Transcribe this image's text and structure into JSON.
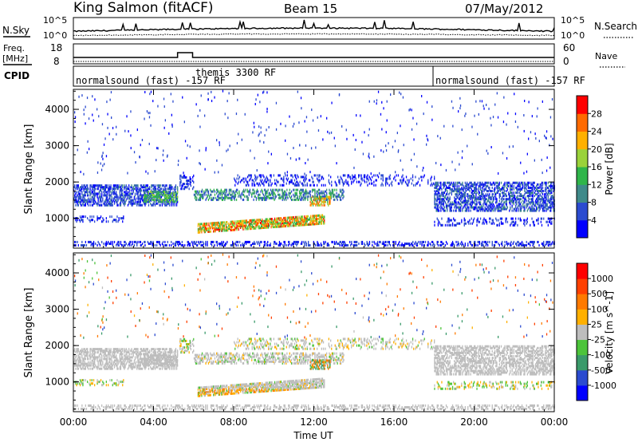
{
  "header": {
    "station": "King Salmon (fitACF)",
    "beam": "Beam 15",
    "date": "07/May/2012"
  },
  "panels": {
    "nsky": {
      "left_label": "N.Sky",
      "right_label": "N.Search",
      "left_ticks": [
        "10^5",
        "10^0"
      ],
      "right_ticks": [
        "10^5",
        "10^0"
      ]
    },
    "freq": {
      "left_label_1": "Freq.",
      "left_label_2": "[MHz]",
      "right_label": "Nave",
      "left_ticks": [
        "18",
        "8"
      ],
      "right_ticks": [
        "60",
        "0"
      ]
    },
    "cpid": {
      "label": "CPID",
      "segments": [
        {
          "text": "normalsound (fast) -157 RF",
          "x": 0.0
        },
        {
          "text": "themis 3300 RF",
          "x": 6.0
        },
        {
          "text": "normalsound (fast) -157 RF",
          "x": 18.0
        }
      ]
    }
  },
  "chart_data": [
    {
      "type": "heatmap",
      "title": "",
      "xlabel": "Time UT",
      "ylabel": "Slant Range [km]",
      "xlim": [
        0,
        24
      ],
      "ylim": [
        180,
        4550
      ],
      "x_ticks": [
        "00:00",
        "04:00",
        "08:00",
        "12:00",
        "16:00",
        "20:00",
        "00:00"
      ],
      "x_tick_values": [
        0,
        4,
        8,
        12,
        16,
        20,
        24
      ],
      "y_ticks": [
        1000,
        2000,
        3000,
        4000
      ],
      "colorbar": {
        "label": "Power [dB]",
        "ticks": [
          "4",
          "8",
          "12",
          "16",
          "20",
          "24",
          "28"
        ],
        "colors": [
          "#0000ff",
          "#2b4bd0",
          "#3f8a8a",
          "#2fb54a",
          "#9ad23a",
          "#ffb000",
          "#ff6a00",
          "#ff0000"
        ]
      }
    },
    {
      "type": "heatmap",
      "title": "",
      "xlabel": "Time UT",
      "ylabel": "Slant Range [km]",
      "xlim": [
        0,
        24
      ],
      "ylim": [
        180,
        4550
      ],
      "x_ticks": [
        "00:00",
        "04:00",
        "08:00",
        "12:00",
        "16:00",
        "20:00",
        "00:00"
      ],
      "x_tick_values": [
        0,
        4,
        8,
        12,
        16,
        20,
        24
      ],
      "y_ticks": [
        1000,
        2000,
        3000,
        4000
      ],
      "colorbar": {
        "label": "Velocity [m s^-1]",
        "ticks": [
          "1000",
          "500",
          "100",
          "25",
          "-25",
          "-100",
          "-500",
          "-1000"
        ],
        "colors": [
          "#0000ff",
          "#2b4bd0",
          "#3a9a6a",
          "#4cc43a",
          "#bdbdbd",
          "#ffb000",
          "#ff7a00",
          "#ff4000",
          "#ff0000"
        ]
      }
    }
  ]
}
